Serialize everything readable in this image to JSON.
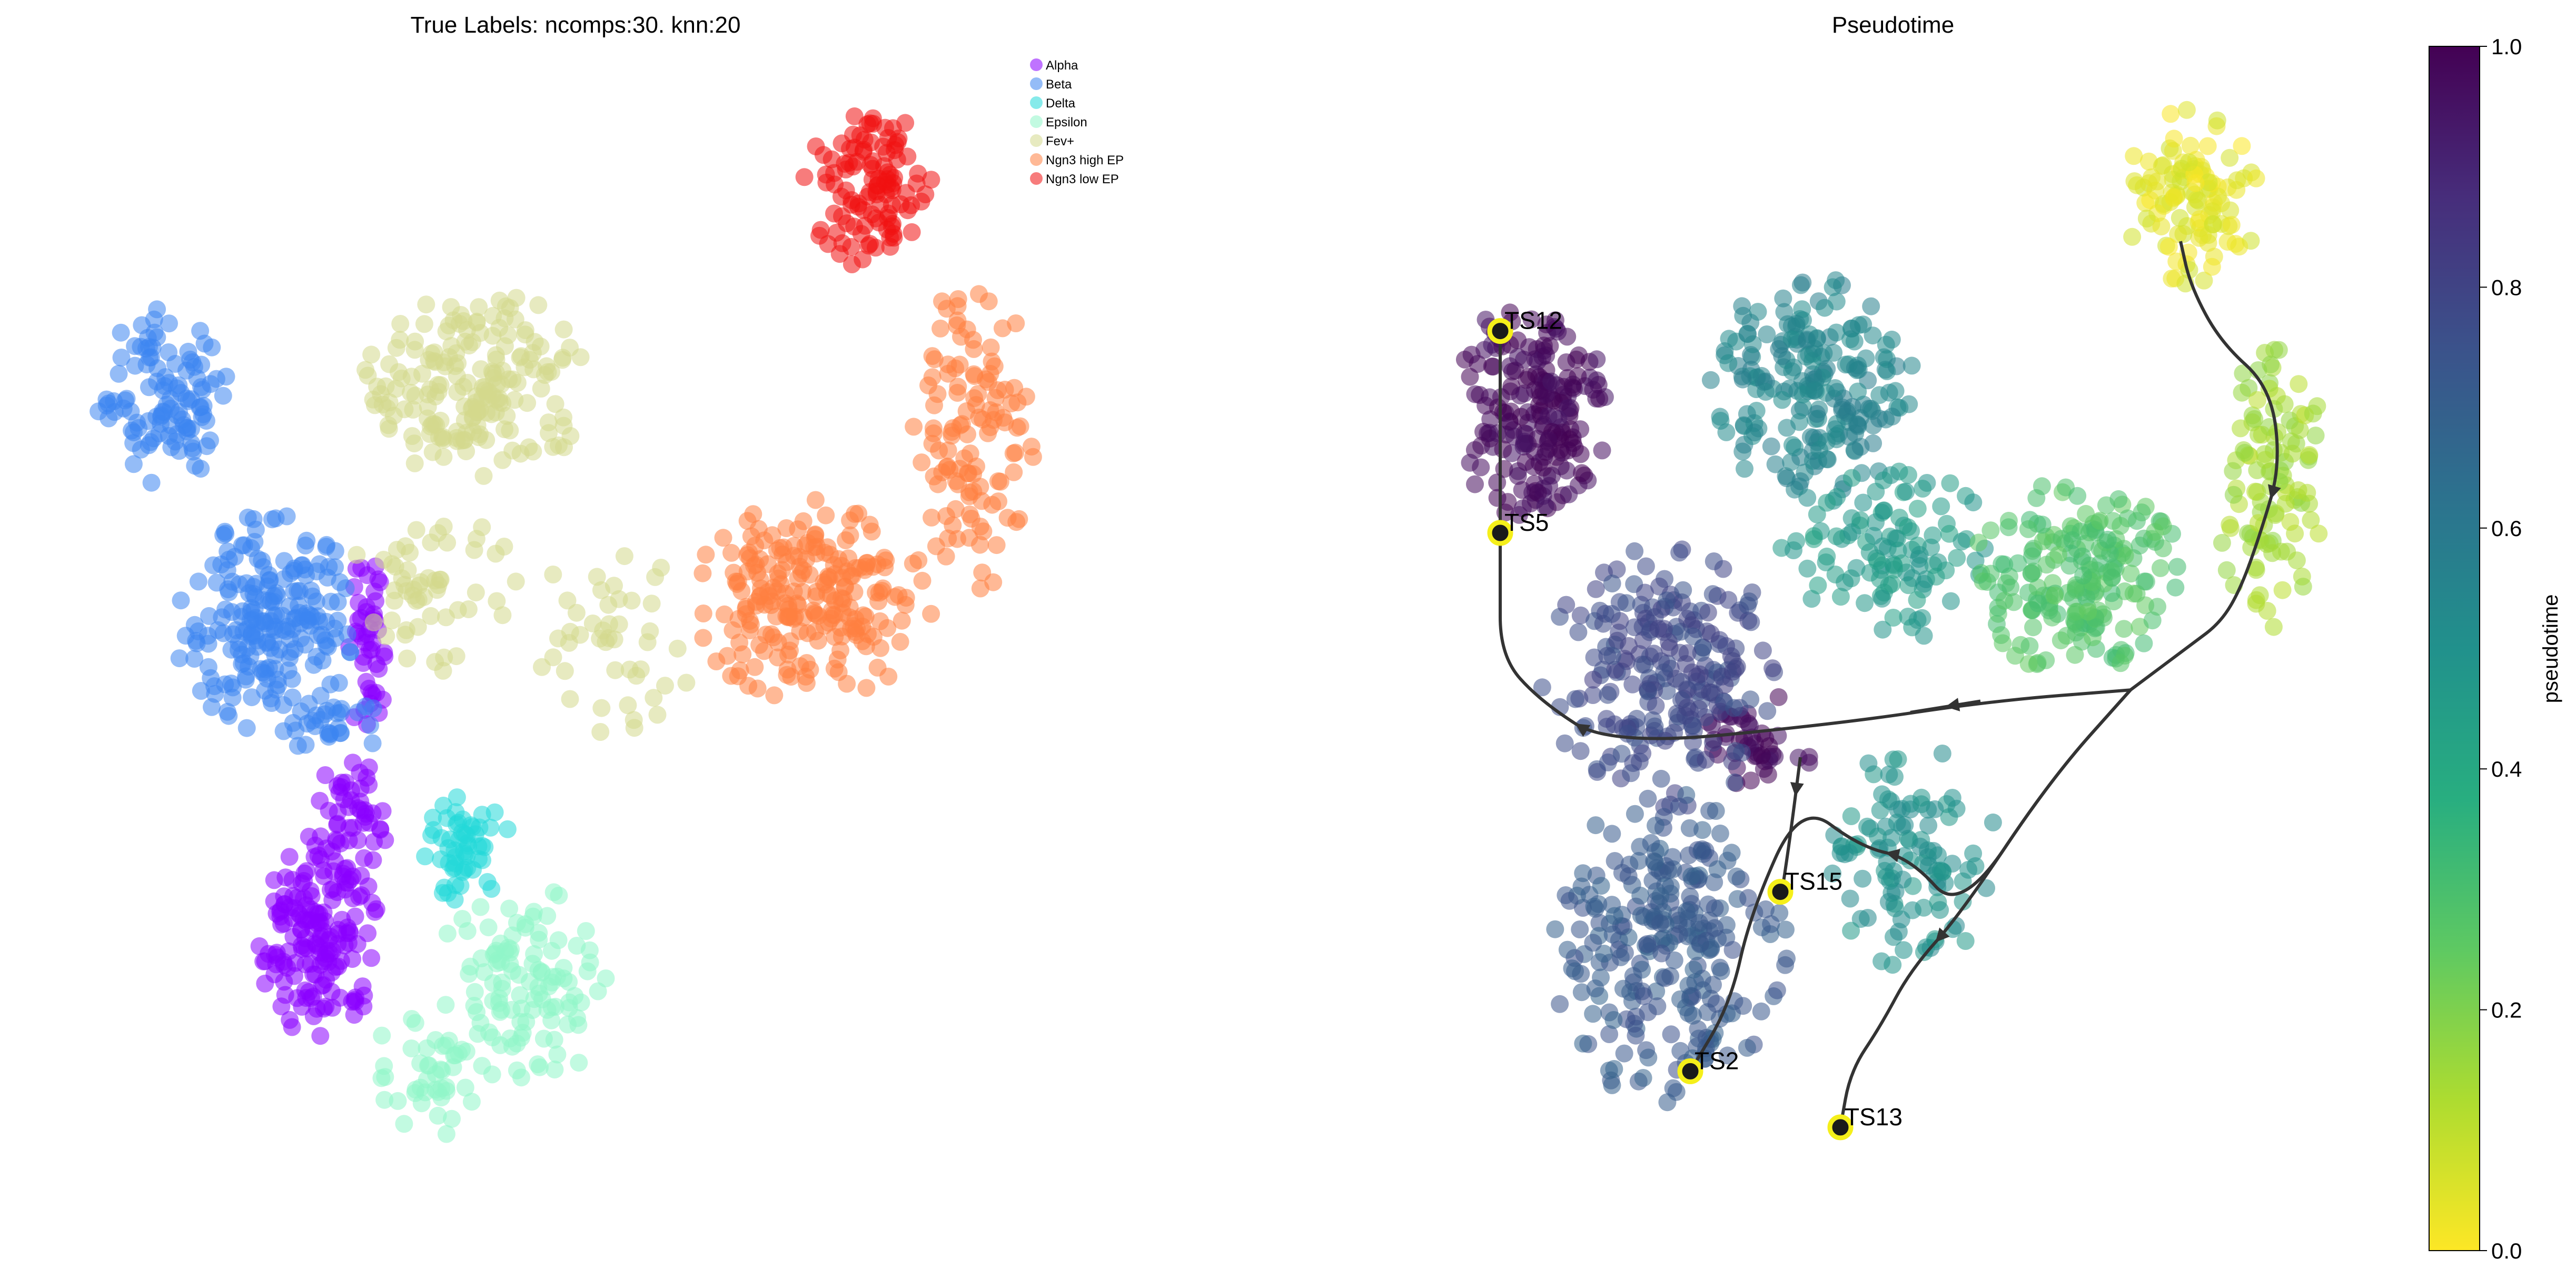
{
  "figure": {
    "panels": [
      {
        "id": "left",
        "title": "True Labels: ncomps:30. knn:20"
      },
      {
        "id": "right",
        "title": "Pseudotime"
      }
    ]
  },
  "chart_data": [
    {
      "type": "scatter",
      "title": "True Labels: ncomps:30. knn:20",
      "xlabel": "",
      "ylabel": "",
      "axes_visible": false,
      "grid": false,
      "legend_position": "top-right",
      "marker_opacity": 0.55,
      "series": [
        {
          "name": "Alpha",
          "color": "#8b00ff",
          "regions": [
            {
              "cx": 0.3,
              "cy": 0.5,
              "rx": 0.025,
              "ry": 0.085,
              "n": 45
            },
            {
              "cx": 0.25,
              "cy": 0.24,
              "rx": 0.06,
              "ry": 0.09,
              "n": 160
            },
            {
              "cx": 0.28,
              "cy": 0.34,
              "rx": 0.04,
              "ry": 0.06,
              "n": 55
            }
          ]
        },
        {
          "name": "Beta",
          "color": "#3d85f0",
          "regions": [
            {
              "cx": 0.1,
              "cy": 0.72,
              "rx": 0.075,
              "ry": 0.08,
              "n": 110
            },
            {
              "cx": 0.2,
              "cy": 0.52,
              "rx": 0.09,
              "ry": 0.1,
              "n": 210
            },
            {
              "cx": 0.26,
              "cy": 0.43,
              "rx": 0.05,
              "ry": 0.035,
              "n": 30
            }
          ]
        },
        {
          "name": "Delta",
          "color": "#22d8d8",
          "regions": [
            {
              "cx": 0.39,
              "cy": 0.32,
              "rx": 0.045,
              "ry": 0.05,
              "n": 55
            }
          ]
        },
        {
          "name": "Epsilon",
          "color": "#8ff5c8",
          "regions": [
            {
              "cx": 0.45,
              "cy": 0.2,
              "rx": 0.09,
              "ry": 0.09,
              "n": 110
            },
            {
              "cx": 0.36,
              "cy": 0.12,
              "rx": 0.06,
              "ry": 0.06,
              "n": 45
            }
          ]
        },
        {
          "name": "Fev+",
          "color": "#d4d98c",
          "regions": [
            {
              "cx": 0.4,
              "cy": 0.73,
              "rx": 0.11,
              "ry": 0.09,
              "n": 190
            },
            {
              "cx": 0.36,
              "cy": 0.55,
              "rx": 0.08,
              "ry": 0.08,
              "n": 55
            },
            {
              "cx": 0.53,
              "cy": 0.5,
              "rx": 0.08,
              "ry": 0.09,
              "n": 45
            }
          ]
        },
        {
          "name": "Ngn3 high EP",
          "color": "#ff7f40",
          "regions": [
            {
              "cx": 0.72,
              "cy": 0.54,
              "rx": 0.12,
              "ry": 0.09,
              "n": 230
            },
            {
              "cx": 0.88,
              "cy": 0.69,
              "rx": 0.06,
              "ry": 0.14,
              "n": 120
            }
          ]
        },
        {
          "name": "Ngn3 low EP",
          "color": "#f01010",
          "regions": [
            {
              "cx": 0.78,
              "cy": 0.91,
              "rx": 0.065,
              "ry": 0.075,
              "n": 110
            }
          ]
        }
      ]
    },
    {
      "type": "scatter",
      "title": "Pseudotime",
      "xlabel": "",
      "ylabel": "",
      "axes_visible": false,
      "grid": false,
      "marker_opacity": 0.55,
      "colorbar": {
        "label": "pseudotime",
        "min": 0.0,
        "max": 1.0,
        "ticks": [
          "0.0",
          "0.2",
          "0.4",
          "0.6",
          "0.8",
          "1.0"
        ],
        "colormap": "viridis",
        "reversed": true
      },
      "value_regions": [
        {
          "cx": 0.14,
          "cy": 0.71,
          "rx": 0.08,
          "ry": 0.1,
          "n": 200,
          "value": 0.98
        },
        {
          "cx": 0.37,
          "cy": 0.41,
          "rx": 0.06,
          "ry": 0.05,
          "n": 45,
          "value": 0.98
        },
        {
          "cx": 0.27,
          "cy": 0.47,
          "rx": 0.12,
          "ry": 0.12,
          "n": 230,
          "value": 0.78
        },
        {
          "cx": 0.28,
          "cy": 0.23,
          "rx": 0.12,
          "ry": 0.14,
          "n": 260,
          "value": 0.72
        },
        {
          "cx": 0.42,
          "cy": 0.73,
          "rx": 0.11,
          "ry": 0.1,
          "n": 210,
          "value": 0.55
        },
        {
          "cx": 0.5,
          "cy": 0.58,
          "rx": 0.11,
          "ry": 0.08,
          "n": 110,
          "value": 0.46
        },
        {
          "cx": 0.52,
          "cy": 0.31,
          "rx": 0.09,
          "ry": 0.1,
          "n": 110,
          "value": 0.5
        },
        {
          "cx": 0.69,
          "cy": 0.56,
          "rx": 0.11,
          "ry": 0.09,
          "n": 200,
          "value": 0.28
        },
        {
          "cx": 0.88,
          "cy": 0.64,
          "rx": 0.06,
          "ry": 0.13,
          "n": 110,
          "value": 0.14
        },
        {
          "cx": 0.8,
          "cy": 0.9,
          "rx": 0.07,
          "ry": 0.08,
          "n": 110,
          "value": 0.04
        }
      ],
      "trajectory": {
        "color": "#333333",
        "paths": [
          [
            [
              0.79,
              0.86
            ],
            [
              0.8,
              0.82
            ],
            [
              0.83,
              0.77
            ],
            [
              0.88,
              0.73
            ],
            [
              0.89,
              0.66
            ],
            [
              0.87,
              0.6
            ],
            [
              0.85,
              0.55
            ],
            [
              0.83,
              0.52
            ],
            [
              0.8,
              0.5
            ],
            [
              0.74,
              0.46
            ]
          ],
          [
            [
              0.74,
              0.46
            ],
            [
              0.6,
              0.45
            ],
            [
              0.45,
              0.43
            ],
            [
              0.22,
              0.41
            ],
            [
              0.15,
              0.45
            ],
            [
              0.11,
              0.49
            ],
            [
              0.11,
              0.56
            ],
            [
              0.11,
              0.67
            ],
            [
              0.11,
              0.78
            ]
          ],
          [
            [
              0.74,
              0.46
            ],
            [
              0.66,
              0.38
            ],
            [
              0.57,
              0.26
            ],
            [
              0.52,
              0.21
            ],
            [
              0.49,
              0.16
            ],
            [
              0.46,
              0.12
            ],
            [
              0.45,
              0.07
            ]
          ],
          [
            [
              0.74,
              0.46
            ],
            [
              0.66,
              0.38
            ],
            [
              0.57,
              0.26
            ],
            [
              0.52,
              0.31
            ],
            [
              0.47,
              0.32
            ],
            [
              0.41,
              0.36
            ],
            [
              0.36,
              0.26
            ],
            [
              0.34,
              0.18
            ],
            [
              0.3,
              0.12
            ]
          ],
          [
            [
              0.41,
              0.4
            ],
            [
              0.4,
              0.33
            ],
            [
              0.39,
              0.27
            ]
          ],
          [
            [
              0.59,
              0.45
            ],
            [
              0.52,
              0.44
            ]
          ]
        ]
      },
      "terminal_states": [
        {
          "label": "TS12",
          "x": 0.11,
          "y": 0.78
        },
        {
          "label": "TS5",
          "x": 0.11,
          "y": 0.6
        },
        {
          "label": "TS15",
          "x": 0.39,
          "y": 0.28
        },
        {
          "label": "TS2",
          "x": 0.3,
          "y": 0.12
        },
        {
          "label": "TS13",
          "x": 0.45,
          "y": 0.07
        }
      ]
    }
  ]
}
